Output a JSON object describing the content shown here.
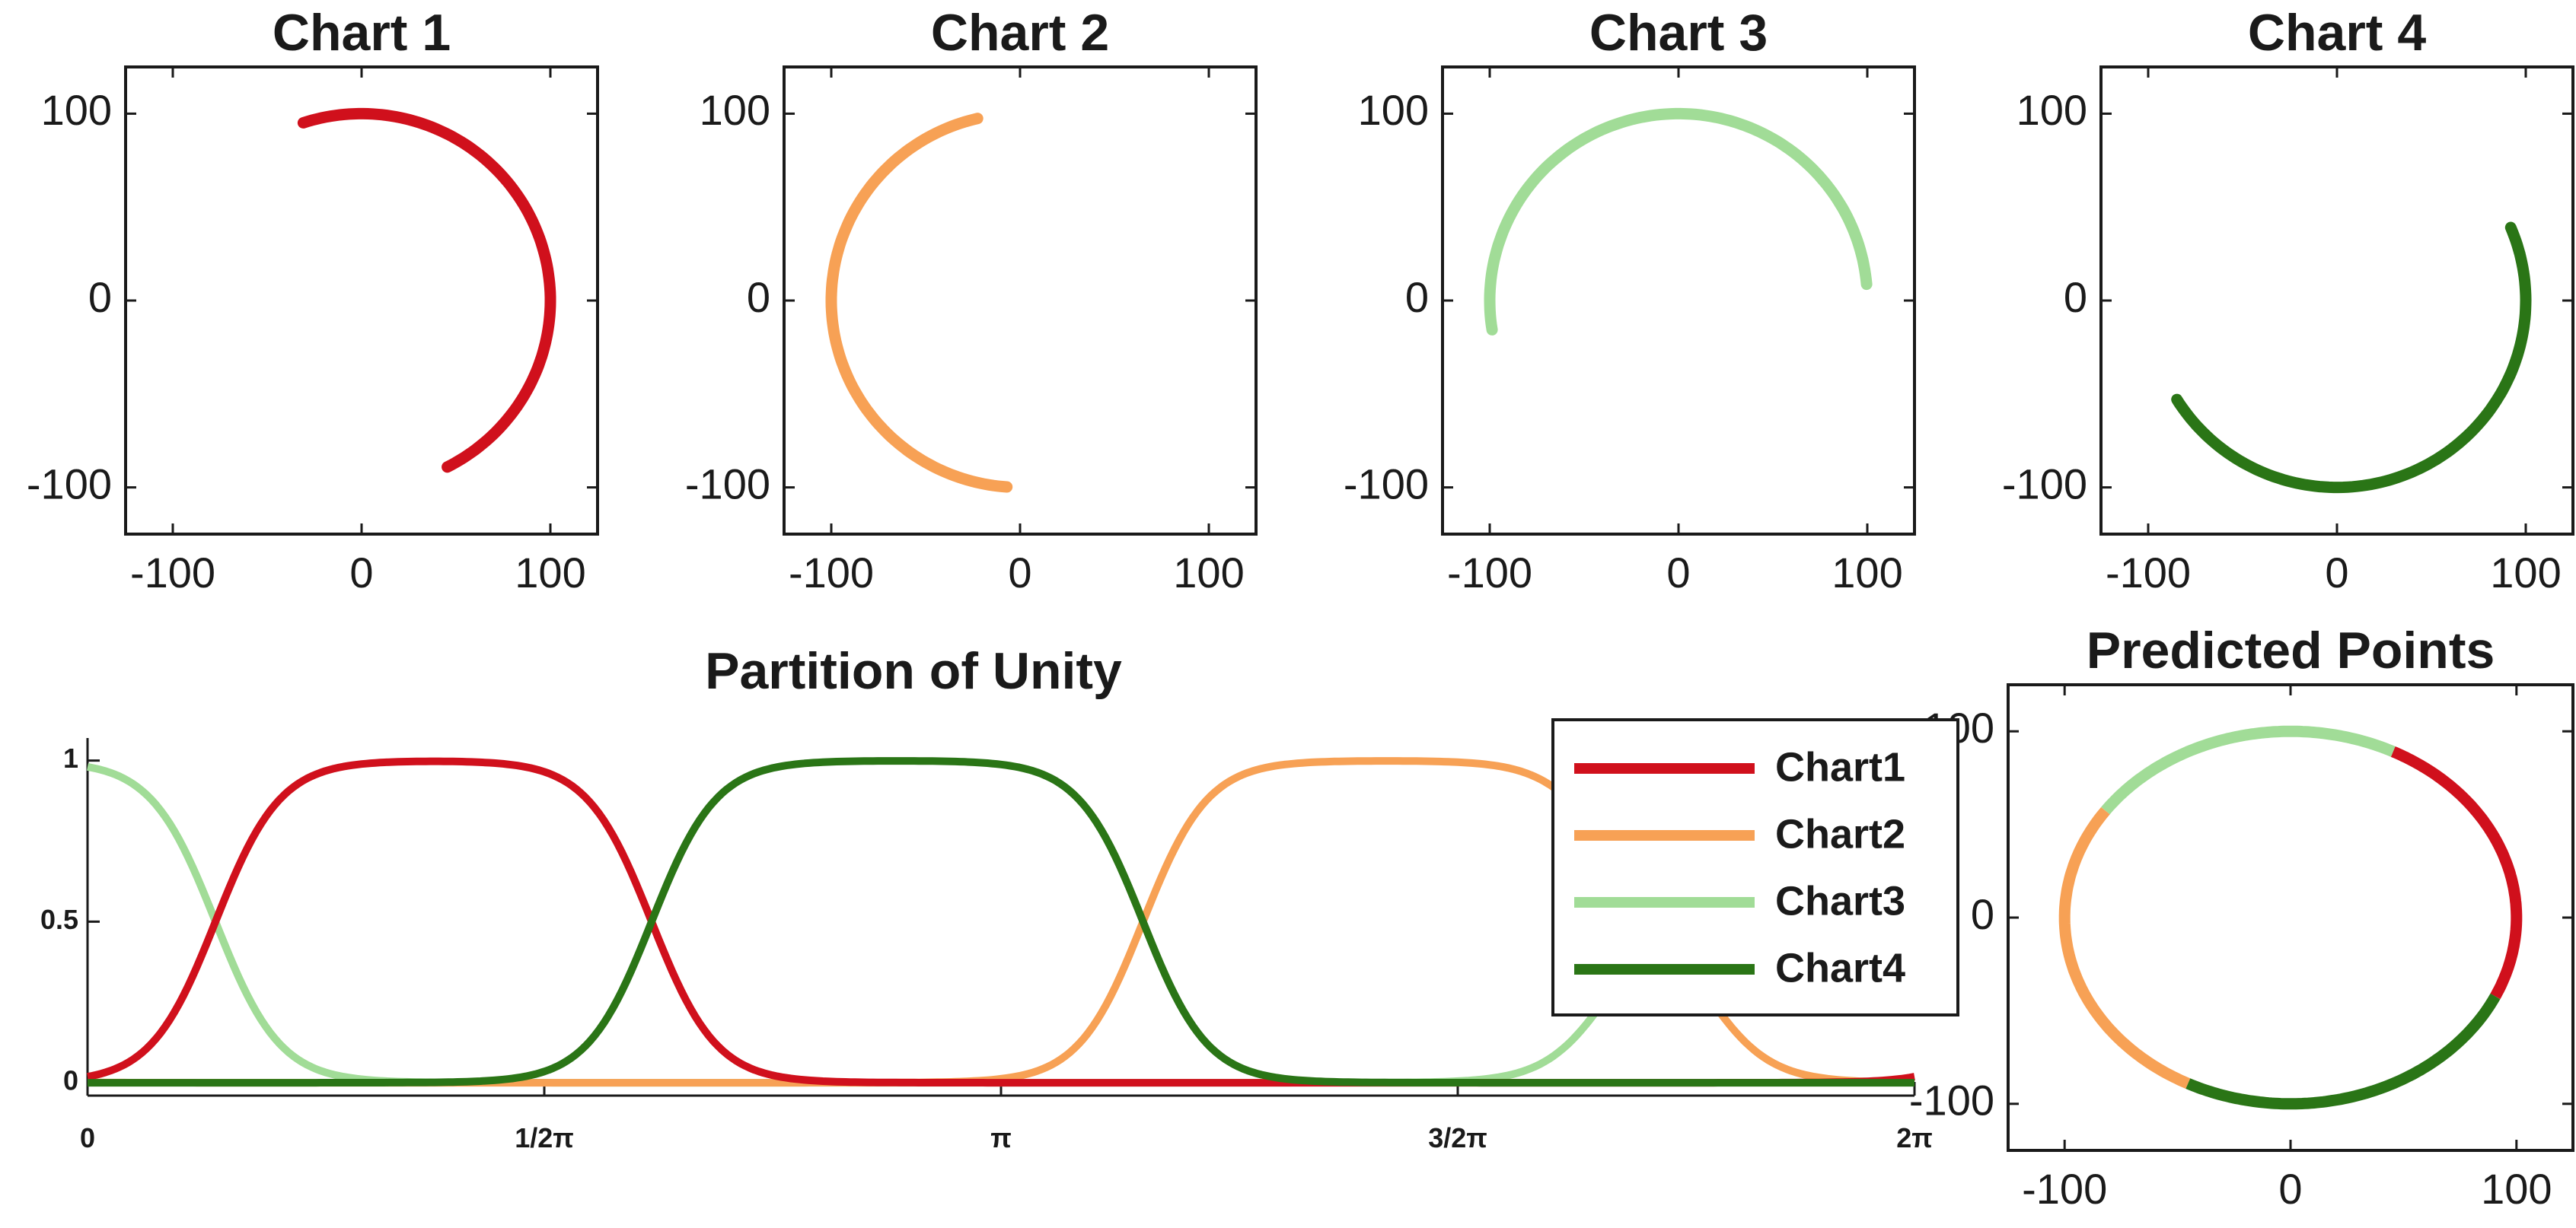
{
  "chart_data": [
    {
      "type": "line",
      "title": "Chart 1",
      "xlim": [
        -125,
        125
      ],
      "ylim": [
        -125,
        125
      ],
      "xticks": [
        "-100",
        "0",
        "100"
      ],
      "yticks": [
        "100",
        "0",
        "-100"
      ],
      "color": "#d0101c",
      "arc_degrees": [
        -63,
        108
      ]
    },
    {
      "type": "line",
      "title": "Chart 2",
      "xlim": [
        -125,
        125
      ],
      "ylim": [
        -125,
        125
      ],
      "xticks": [
        "-100",
        "0",
        "100"
      ],
      "yticks": [
        "100",
        "0",
        "-100"
      ],
      "color": "#f7a155",
      "arc_degrees": [
        103,
        266
      ]
    },
    {
      "type": "line",
      "title": "Chart 3",
      "xlim": [
        -125,
        125
      ],
      "ylim": [
        -125,
        125
      ],
      "xticks": [
        "-100",
        "0",
        "100"
      ],
      "yticks": [
        "100",
        "0",
        "-100"
      ],
      "color": "#a1dc97",
      "arc_degrees": [
        5,
        189
      ]
    },
    {
      "type": "line",
      "title": "Chart 4",
      "xlim": [
        -125,
        125
      ],
      "ylim": [
        -125,
        125
      ],
      "xticks": [
        "-100",
        "0",
        "100"
      ],
      "yticks": [
        "100",
        "0",
        "-100"
      ],
      "color": "#2a7516",
      "arc_degrees": [
        212,
        383
      ]
    },
    {
      "type": "line",
      "title": "Partition of Unity",
      "xlim": [
        0,
        6.2832
      ],
      "ylim": [
        -0.04,
        1.07
      ],
      "xticks": [
        "0",
        "1/2π",
        "π",
        "3/2π",
        "2π"
      ],
      "yticks": [
        "1",
        "0.5",
        "0"
      ],
      "legend_position": "top-right",
      "series": [
        {
          "name": "Chart1",
          "color": "#d0101c",
          "rise_at": 0.44,
          "fall_at": 1.94
        },
        {
          "name": "Chart2",
          "color": "#f7a155",
          "rise_at": 3.63,
          "fall_at": 5.5
        },
        {
          "name": "Chart3",
          "color": "#a1dc97",
          "rise_at": 5.3,
          "fall_at": 0.44
        },
        {
          "name": "Chart4",
          "color": "#2a7516",
          "rise_at": 1.94,
          "fall_at": 3.63
        }
      ]
    },
    {
      "type": "line",
      "title": "Predicted Points",
      "xlim": [
        -125,
        125
      ],
      "ylim": [
        -125,
        125
      ],
      "xticks": [
        "-100",
        "0",
        "100"
      ],
      "yticks": [
        "100",
        "0",
        "-100"
      ],
      "segments": [
        {
          "color": "#d0101c",
          "from_deg": -25,
          "to_deg": 63
        },
        {
          "color": "#a1dc97",
          "from_deg": 63,
          "to_deg": 145
        },
        {
          "color": "#f7a155",
          "from_deg": 145,
          "to_deg": 243
        },
        {
          "color": "#2a7516",
          "from_deg": 243,
          "to_deg": 335
        }
      ]
    }
  ]
}
